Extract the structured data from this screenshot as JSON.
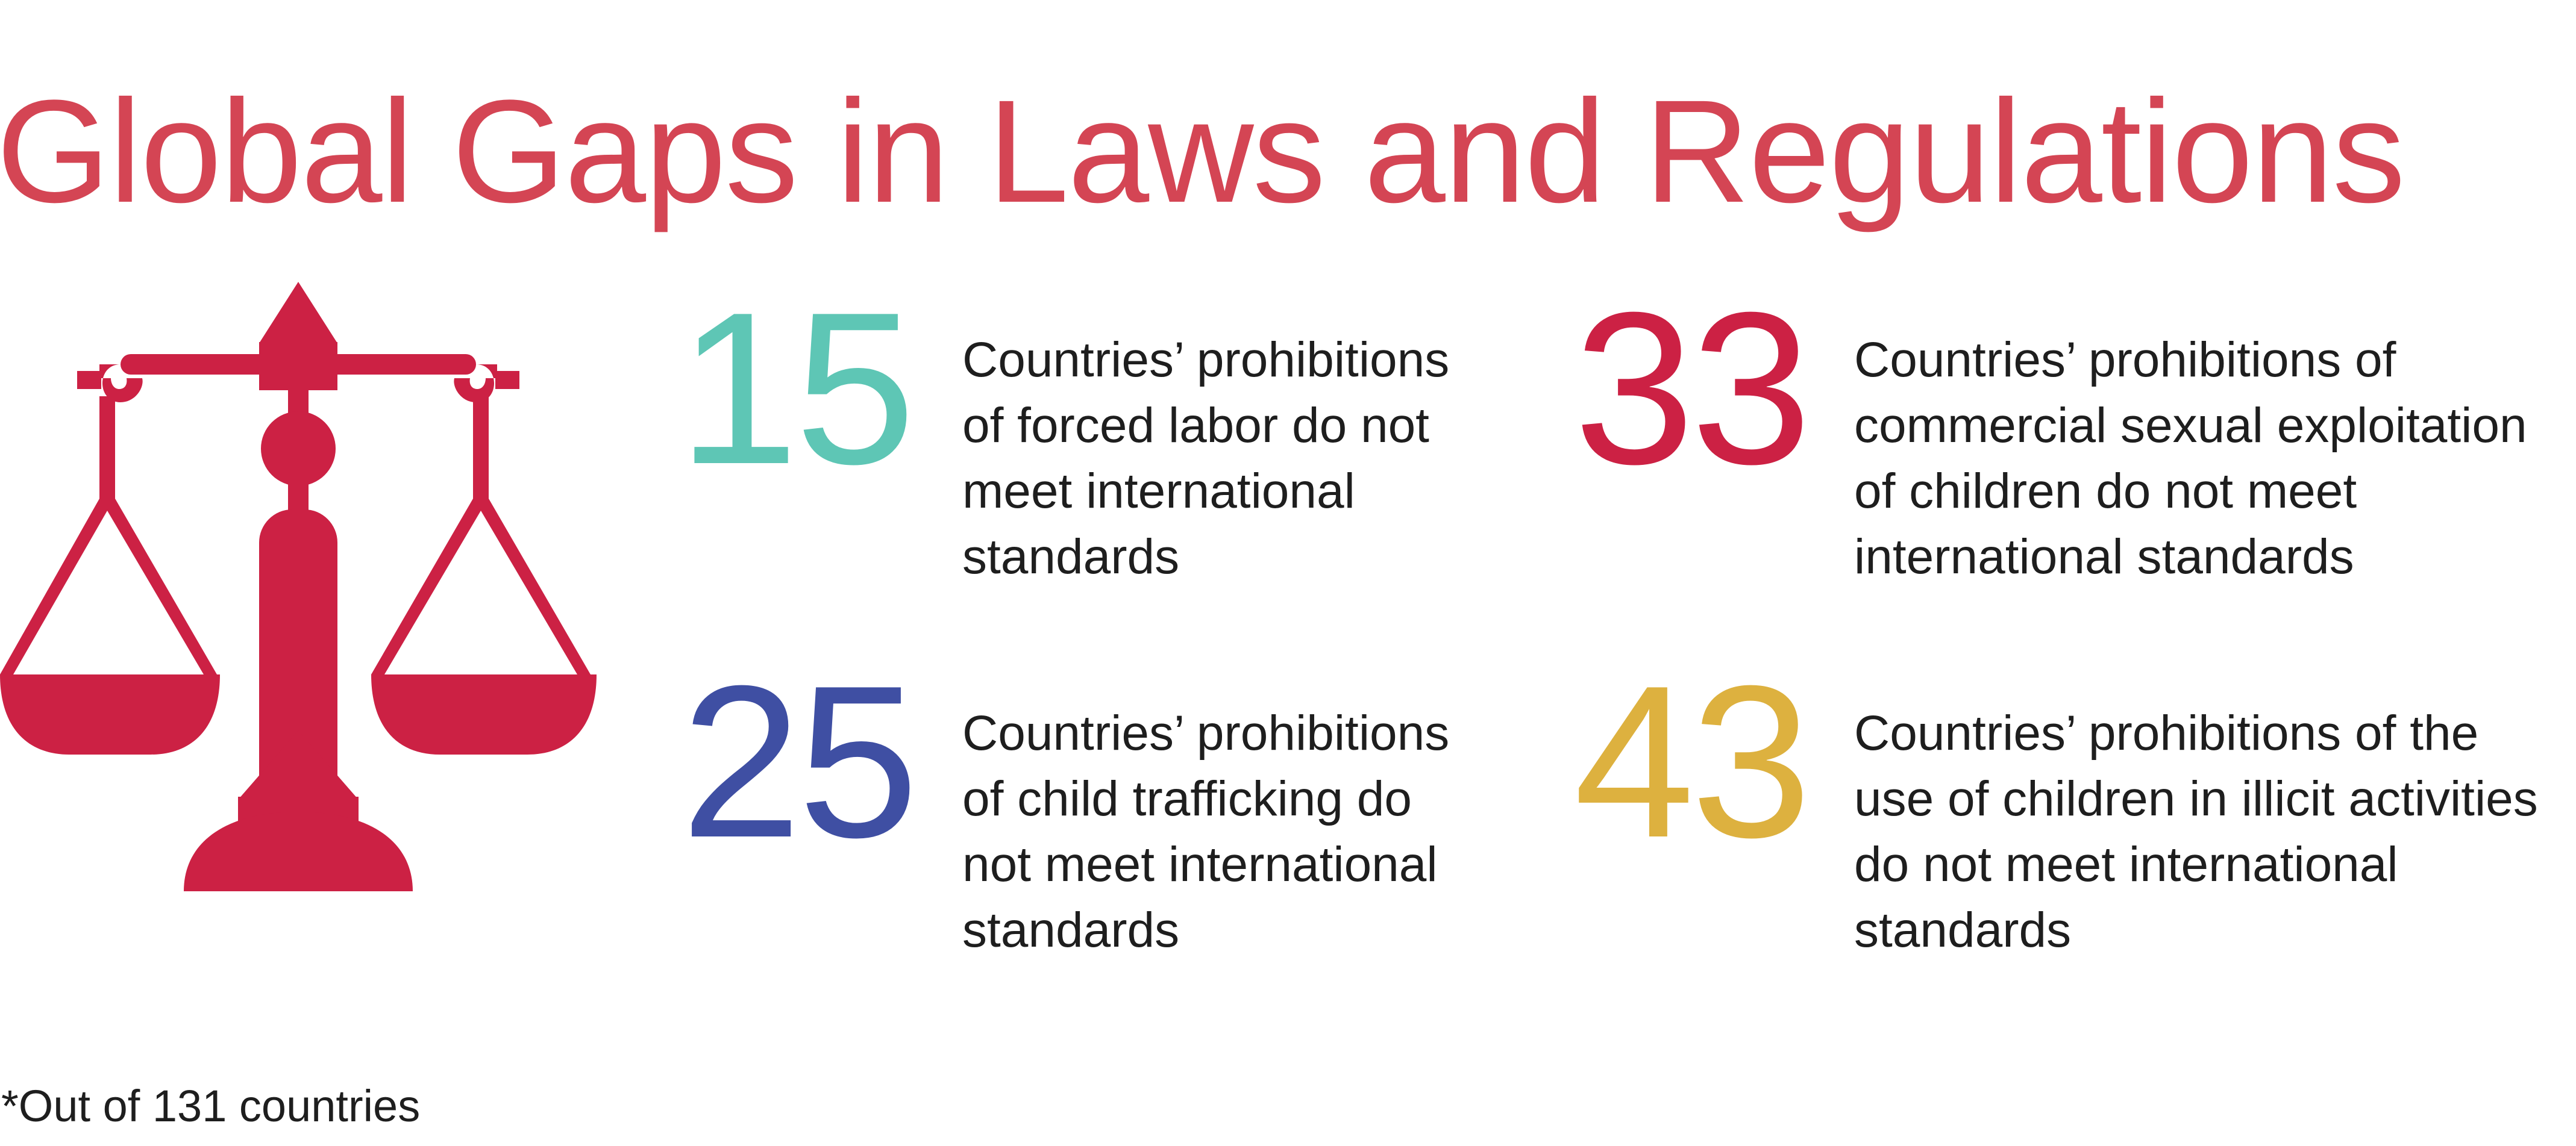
{
  "title": "Global Gaps in Laws and Regulations",
  "icon": {
    "name": "scales-of-justice-icon",
    "color": "#cc2144"
  },
  "stats": [
    {
      "value": "15",
      "color": "#5ec6b5",
      "description": "Countries’ prohibitions\nof forced labor do not\nmeet international\nstandards"
    },
    {
      "value": "33",
      "color": "#cc2144",
      "description": "Countries’ prohibitions of\ncommercial sexual exploitation\nof children do not meet\ninternational standards"
    },
    {
      "value": "25",
      "color": "#3f4fa3",
      "description": "Countries’ prohibitions\nof child trafficking do\nnot meet international\nstandards"
    },
    {
      "value": "43",
      "color": "#ddb13f",
      "description": "Countries’ prohibitions of the\nuse of children in illicit activities\ndo not meet international\nstandards"
    }
  ],
  "footnote": "*Out of 131 countries"
}
